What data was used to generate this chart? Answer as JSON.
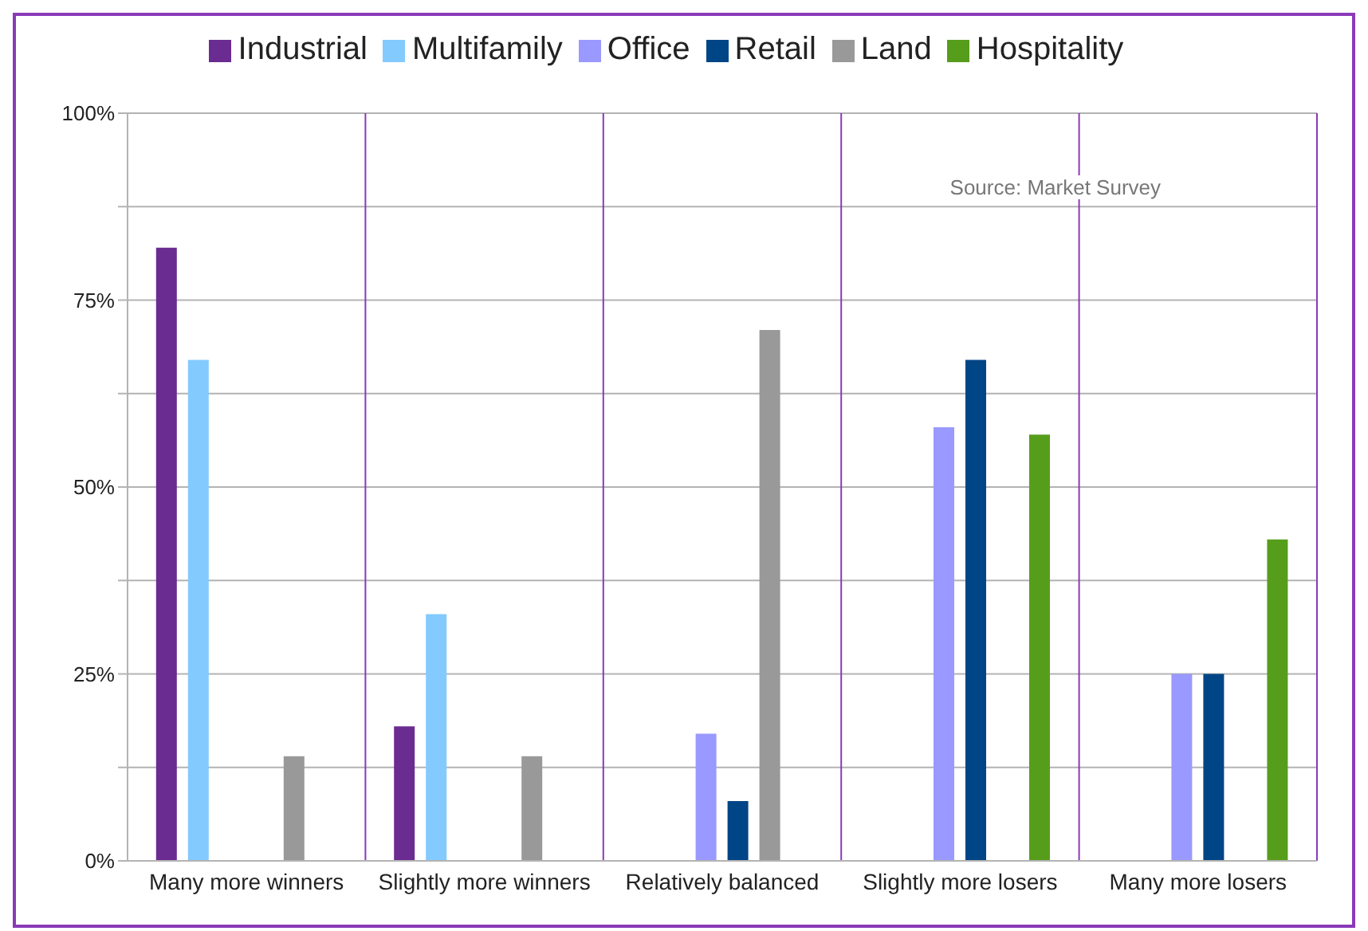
{
  "chart_data": {
    "type": "bar",
    "categories": [
      "Many more winners",
      "Slightly more winners",
      "Relatively balanced",
      "Slightly more losers",
      "Many more losers"
    ],
    "series": [
      {
        "name": "Industrial",
        "color": "#6a2c91",
        "values": [
          82,
          18,
          0,
          0,
          0
        ]
      },
      {
        "name": "Multifamily",
        "color": "#83caff",
        "values": [
          67,
          33,
          0,
          0,
          0
        ]
      },
      {
        "name": "Office",
        "color": "#9999ff",
        "values": [
          0,
          0,
          17,
          58,
          25
        ]
      },
      {
        "name": "Retail",
        "color": "#004586",
        "values": [
          0,
          0,
          8,
          67,
          25
        ]
      },
      {
        "name": "Land",
        "color": "#999999",
        "values": [
          14,
          14,
          71,
          0,
          0
        ]
      },
      {
        "name": "Hospitality",
        "color": "#579d1c",
        "values": [
          0,
          0,
          0,
          57,
          43
        ]
      }
    ],
    "ylim": [
      0,
      100
    ],
    "yticks": [
      {
        "value": 0,
        "label": "0%"
      },
      {
        "value": 12.5,
        "label": null
      },
      {
        "value": 25,
        "label": "25%"
      },
      {
        "value": 37.5,
        "label": null
      },
      {
        "value": 50,
        "label": "50%"
      },
      {
        "value": 62.5,
        "label": null
      },
      {
        "value": 75,
        "label": "75%"
      },
      {
        "value": 87.5,
        "label": null
      },
      {
        "value": 100,
        "label": "100%"
      }
    ],
    "grid": true,
    "legend": "top",
    "annotations": [
      "Source: Market Survey"
    ]
  }
}
